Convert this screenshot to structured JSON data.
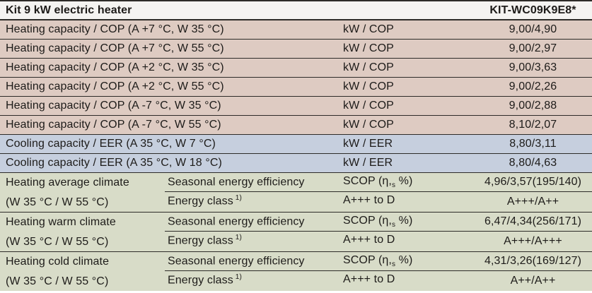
{
  "colors": {
    "beige": "#decbc2",
    "blue": "#c6cfde",
    "green": "#d8dcc8",
    "line": "#2d2b28",
    "header_bg": "#f4f3f1",
    "text": "#1d1b19"
  },
  "header": {
    "title": "Kit 9 kW electric heater",
    "model": "KIT-WC09K9E8*"
  },
  "spec_rows": [
    {
      "parameter": "Heating capacity / COP (A +7 °C, W 35 °C)",
      "unit": "kW / COP",
      "value": "9,00/4,90",
      "tone": "beige"
    },
    {
      "parameter": "Heating capacity / COP (A +7 °C, W 55 °C)",
      "unit": "kW / COP",
      "value": "9,00/2,97",
      "tone": "beige"
    },
    {
      "parameter": "Heating capacity / COP (A +2 °C, W 35 °C)",
      "unit": "kW / COP",
      "value": "9,00/3,63",
      "tone": "beige"
    },
    {
      "parameter": "Heating capacity / COP (A +2 °C, W 55 °C)",
      "unit": "kW / COP",
      "value": "9,00/2,26",
      "tone": "beige"
    },
    {
      "parameter": "Heating capacity / COP (A -7 °C, W 35 °C)",
      "unit": "kW / COP",
      "value": "9,00/2,88",
      "tone": "beige"
    },
    {
      "parameter": "Heating capacity / COP (A -7 °C, W 55 °C)",
      "unit": "kW / COP",
      "value": "8,10/2,07",
      "tone": "beige"
    },
    {
      "parameter": "Cooling capacity / EER (A 35 °C, W 7 °C)",
      "unit": "kW / EER",
      "value": "8,80/3,11",
      "tone": "blue"
    },
    {
      "parameter": "Cooling capacity / EER (A 35 °C, W 18 °C)",
      "unit": "kW / EER",
      "value": "8,80/4,63",
      "tone": "blue"
    }
  ],
  "climate_groups": [
    {
      "name": "Heating average climate",
      "condition": "(W 35 °C / W 55 °C)",
      "rows": [
        {
          "label": "Seasonal energy efficiency",
          "label_sup": "",
          "unit_prefix": "SCOP (η,",
          "unit_subscript": "s",
          "unit_suffix": " %)",
          "value": "4,96/3,57(195/140)"
        },
        {
          "label": "Energy class",
          "label_sup": "1)",
          "unit_prefix": "A+++ to D",
          "unit_subscript": "",
          "unit_suffix": "",
          "value": "A+++/A++"
        }
      ]
    },
    {
      "name": "Heating warm climate",
      "condition": "(W 35 °C / W 55 °C)",
      "rows": [
        {
          "label": "Seasonal energy efficiency",
          "label_sup": "",
          "unit_prefix": "SCOP (η,",
          "unit_subscript": "s",
          "unit_suffix": " %)",
          "value": "6,47/4,34(256/171)"
        },
        {
          "label": "Energy class",
          "label_sup": "1)",
          "unit_prefix": "A+++ to D",
          "unit_subscript": "",
          "unit_suffix": "",
          "value": "A+++/A+++"
        }
      ]
    },
    {
      "name": "Heating cold climate",
      "condition": "(W 35 °C / W 55 °C)",
      "rows": [
        {
          "label": "Seasonal energy efficiency",
          "label_sup": "",
          "unit_prefix": "SCOP (η,",
          "unit_subscript": "s",
          "unit_suffix": " %)",
          "value": "4,31/3,26(169/127)"
        },
        {
          "label": "Energy class",
          "label_sup": "1)",
          "unit_prefix": "A+++ to D",
          "unit_subscript": "",
          "unit_suffix": "",
          "value": "A++/A++"
        }
      ]
    }
  ]
}
